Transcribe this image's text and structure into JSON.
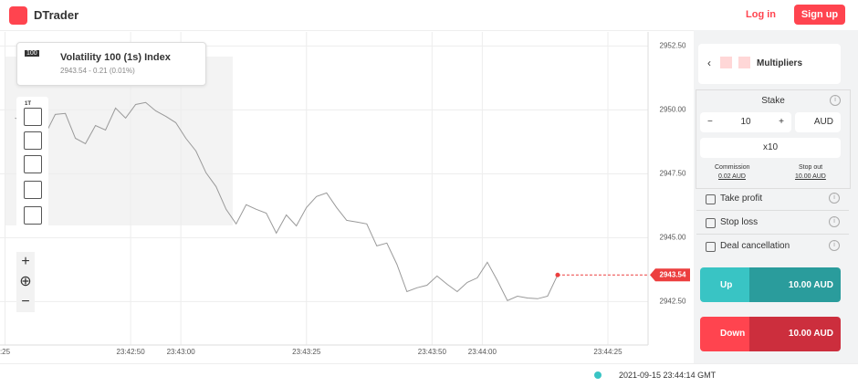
{
  "header": {
    "brand": "DTrader",
    "login": "Log in",
    "signup": "Sign up"
  },
  "market": {
    "icon": "100",
    "name": "Volatility 100 (1s) Index",
    "quote": "2943.54 - 0.21 (0.01%)"
  },
  "toolbar": {
    "interval": "1T"
  },
  "chart_data": {
    "type": "line",
    "color": "#999999",
    "x": [
      "23:42:27",
      "23:42:29",
      "23:42:31",
      "23:42:33",
      "23:42:35",
      "23:42:37",
      "23:42:39",
      "23:42:41",
      "23:42:43",
      "23:42:45",
      "23:42:47",
      "23:42:49",
      "23:42:51",
      "23:42:53",
      "23:42:55",
      "23:42:57",
      "23:42:59",
      "23:43:01",
      "23:43:03",
      "23:43:05",
      "23:43:07",
      "23:43:09",
      "23:43:11",
      "23:43:13",
      "23:43:15",
      "23:43:17",
      "23:43:19",
      "23:43:21",
      "23:43:23",
      "23:43:25",
      "23:43:27",
      "23:43:29",
      "23:43:31",
      "23:43:33",
      "23:43:35",
      "23:43:37",
      "23:43:39",
      "23:43:41",
      "23:43:43",
      "23:43:45",
      "23:43:47",
      "23:43:49",
      "23:43:51",
      "23:43:53",
      "23:43:55",
      "23:43:57",
      "23:43:59",
      "23:44:01",
      "23:44:03",
      "23:44:05",
      "23:44:07",
      "23:44:09",
      "23:44:11",
      "23:44:13",
      "23:44:15"
    ],
    "values": [
      2949.68,
      2949.57,
      2949.61,
      2949.04,
      2949.82,
      2949.86,
      2948.89,
      2948.68,
      2949.39,
      2949.21,
      2950.07,
      2949.68,
      2950.21,
      2950.29,
      2949.96,
      2949.75,
      2949.5,
      2948.89,
      2948.39,
      2947.54,
      2947.0,
      2946.11,
      2945.54,
      2946.29,
      2946.11,
      2945.96,
      2945.18,
      2945.89,
      2945.46,
      2946.18,
      2946.61,
      2946.75,
      2946.18,
      2945.68,
      2945.61,
      2945.54,
      2944.68,
      2944.79,
      2943.96,
      2942.89,
      2943.04,
      2943.14,
      2943.5,
      2943.18,
      2942.89,
      2943.25,
      2943.43,
      2944.04,
      2943.32,
      2942.54,
      2942.71,
      2942.64,
      2942.61,
      2942.71,
      2943.54
    ],
    "xlim": [
      "23:42:24",
      "23:44:33"
    ],
    "xticks": [
      {
        "value": "23:42:25",
        "label": ":25"
      },
      "23:42:50",
      "23:43:00",
      "23:43:25",
      "23:43:50",
      "23:44:00",
      "23:44:25"
    ],
    "ylim": [
      2940.8,
      2953.05
    ],
    "yticks": [
      {
        "value": 2942.5,
        "label": "2942.50"
      },
      {
        "value": 2945,
        "label": "2945.00"
      },
      {
        "value": 2947.5,
        "label": "2947.50"
      },
      {
        "value": 2950,
        "label": "2950.00"
      },
      {
        "value": 2952.5,
        "label": "2952.50"
      }
    ],
    "current_price": 2943.54,
    "current_color": "#ec3f3f",
    "grid": true
  },
  "trade": {
    "type": "Multipliers",
    "stake_label": "Stake",
    "stake": "10",
    "currency": "AUD",
    "multiplier": "x10",
    "commission_label": "Commission",
    "commission": "0.02 AUD",
    "stopout_label": "Stop out",
    "stopout": "10.00 AUD",
    "options": [
      "Take profit",
      "Stop loss",
      "Deal cancellation"
    ],
    "up": {
      "label": "Up",
      "amount": "10.00 AUD"
    },
    "down": {
      "label": "Down",
      "amount": "10.00 AUD"
    }
  },
  "footer": {
    "time": "2021-09-15 23:44:14 GMT"
  }
}
